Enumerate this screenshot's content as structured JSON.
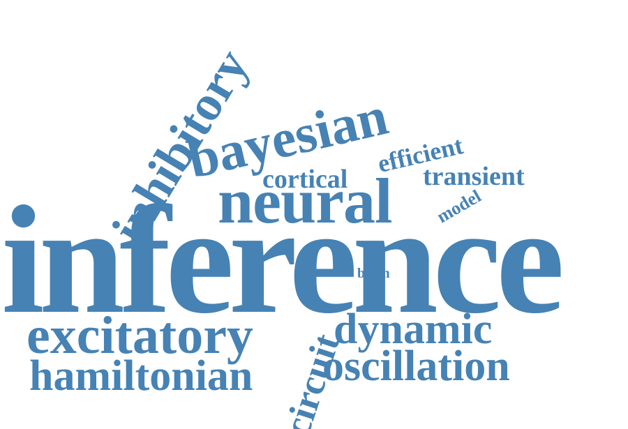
{
  "word_cloud": {
    "color": "#4682b4",
    "words": {
      "inference": "inference",
      "inhibitory": "inhibitory",
      "bayesian": "bayesian",
      "neural": "neural",
      "cortical": "cortical",
      "efficient": "efficient",
      "transient": "transient",
      "model": "model",
      "brain": "brain",
      "excitatory": "excitatory",
      "hamiltonian": "hamiltonian",
      "circuit": "circuit",
      "dynamic": "dynamic",
      "oscillation": "oscillation"
    }
  }
}
